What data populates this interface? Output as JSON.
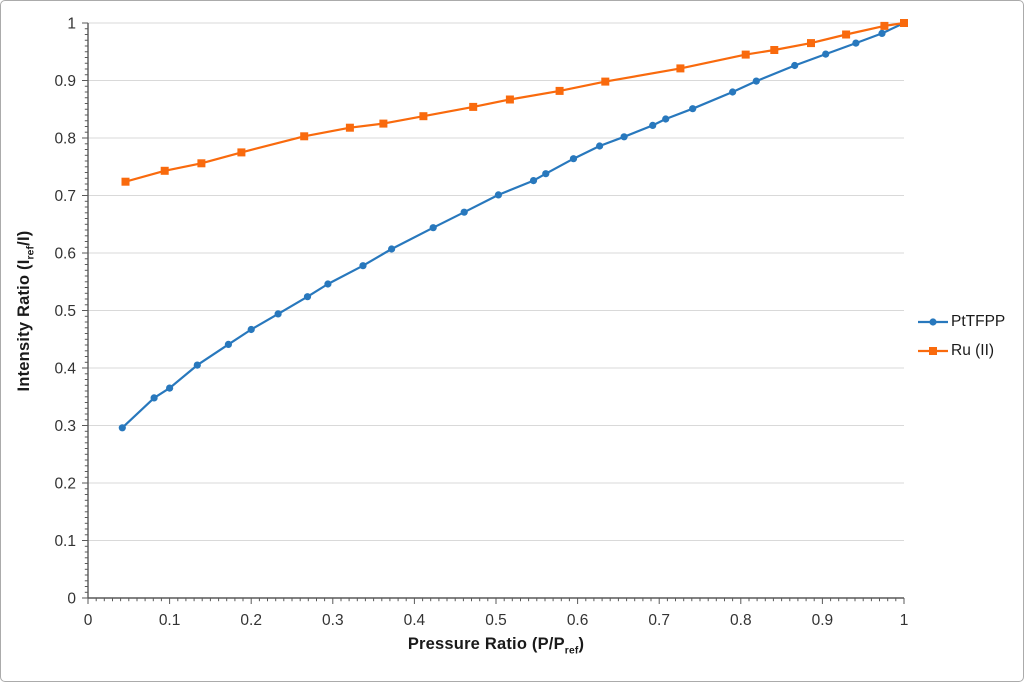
{
  "figure": {
    "background": "#ffffff",
    "border_color": "#ababab",
    "grid_color": "#d9d9d9",
    "axis_color": "#595959",
    "tick_label_color": "#333333"
  },
  "chart_data": {
    "type": "line",
    "title": "",
    "xlabel": {
      "pre": "Pressure Ratio (P/P",
      "sub": "ref",
      "post": ")"
    },
    "ylabel": {
      "pre": "Intensity Ratio (I",
      "sub": "ref",
      "post": "/I)"
    },
    "xlim": [
      0,
      1
    ],
    "ylim": [
      0,
      1
    ],
    "x_ticks": [
      0,
      0.1,
      0.2,
      0.3,
      0.4,
      0.5,
      0.6,
      0.7,
      0.8,
      0.9,
      1
    ],
    "y_ticks": [
      0,
      0.1,
      0.2,
      0.3,
      0.4,
      0.5,
      0.6,
      0.7,
      0.8,
      0.9,
      1
    ],
    "minor_tick_step": 0.01,
    "grid": "horizontal-major",
    "legend_position": "right",
    "series": [
      {
        "name": "PtTFPP",
        "color": "#2878bd",
        "marker": "circle",
        "x": [
          0.042,
          0.081,
          0.1,
          0.134,
          0.172,
          0.2,
          0.233,
          0.269,
          0.294,
          0.337,
          0.372,
          0.423,
          0.461,
          0.503,
          0.546,
          0.561,
          0.595,
          0.627,
          0.657,
          0.692,
          0.708,
          0.741,
          0.79,
          0.819,
          0.866,
          0.904,
          0.941,
          0.973,
          1.0
        ],
        "y": [
          0.296,
          0.348,
          0.365,
          0.405,
          0.441,
          0.467,
          0.494,
          0.524,
          0.546,
          0.578,
          0.607,
          0.644,
          0.671,
          0.701,
          0.726,
          0.738,
          0.764,
          0.786,
          0.802,
          0.822,
          0.833,
          0.851,
          0.88,
          0.899,
          0.926,
          0.946,
          0.965,
          0.982,
          1.0
        ]
      },
      {
        "name": "Ru (II)",
        "color": "#f96a0d",
        "marker": "square",
        "x": [
          0.046,
          0.094,
          0.139,
          0.188,
          0.265,
          0.321,
          0.362,
          0.411,
          0.472,
          0.517,
          0.578,
          0.634,
          0.726,
          0.806,
          0.841,
          0.886,
          0.929,
          0.976,
          1.0
        ],
        "y": [
          0.724,
          0.743,
          0.756,
          0.775,
          0.803,
          0.818,
          0.825,
          0.838,
          0.854,
          0.867,
          0.882,
          0.898,
          0.921,
          0.945,
          0.953,
          0.965,
          0.98,
          0.995,
          1.0
        ]
      }
    ]
  }
}
